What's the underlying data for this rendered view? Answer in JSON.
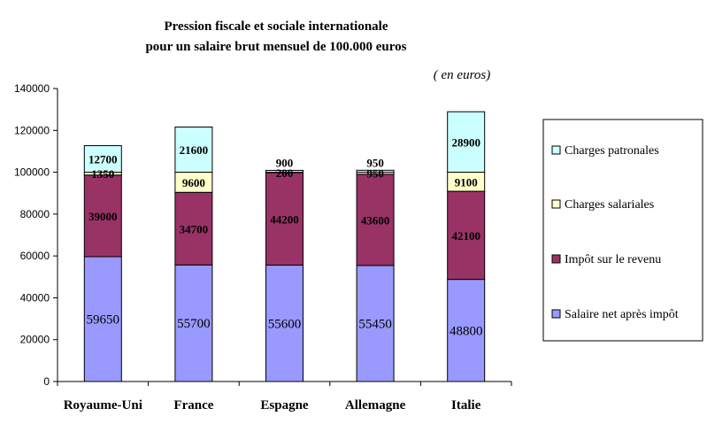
{
  "chart_data": {
    "type": "bar",
    "stacked": true,
    "title": "Pression fiscale et sociale internationale",
    "subtitle": "pour un salaire brut mensuel de 100.000 euros",
    "unit_note": "( en euros)",
    "categories": [
      "Royaume-Uni",
      "France",
      "Espagne",
      "Allemagne",
      "Italie"
    ],
    "ylim": [
      0,
      140000
    ],
    "yticks": [
      0,
      20000,
      40000,
      60000,
      80000,
      100000,
      120000,
      140000
    ],
    "ytick_labels": [
      "0",
      "20000",
      "40000",
      "60000",
      "80000",
      "100000",
      "120000",
      "140000"
    ],
    "grid": false,
    "legend_position": "right",
    "series": [
      {
        "name": "Salaire net après impôt",
        "color": "#9999FF",
        "values": [
          59650,
          55700,
          55600,
          55450,
          48800
        ],
        "labels": [
          "59650",
          "55700",
          "55600",
          "55450",
          "48800"
        ]
      },
      {
        "name": "Impôt sur le revenu",
        "color": "#993366",
        "values": [
          39000,
          34700,
          44200,
          43600,
          42100
        ],
        "labels": [
          "39000",
          "34700",
          "44200",
          "43600",
          "42100"
        ]
      },
      {
        "name": "Charges salariales",
        "color": "#FFFFCC",
        "values": [
          1350,
          9600,
          200,
          950,
          9100
        ],
        "labels": [
          "1350",
          "9600",
          "200",
          "950",
          "9100"
        ]
      },
      {
        "name": "Charges patronales",
        "color": "#CCFFFF",
        "values": [
          12700,
          21600,
          900,
          950,
          28900
        ],
        "labels": [
          "12700",
          "21600",
          "900",
          "950",
          "28900"
        ]
      }
    ]
  }
}
